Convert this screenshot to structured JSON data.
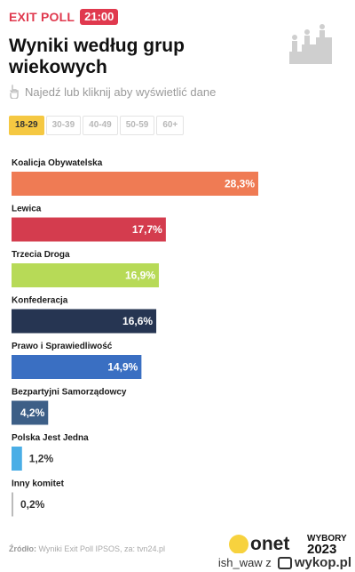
{
  "header": {
    "label": "EXIT POLL",
    "time": "21:00"
  },
  "title": "Wyniki według grup wiekowych",
  "hint": "Najedź lub kliknij aby wyświetlić dane",
  "tabs": [
    {
      "label": "18-29",
      "active": true
    },
    {
      "label": "30-39",
      "active": false
    },
    {
      "label": "40-49",
      "active": false
    },
    {
      "label": "50-59",
      "active": false
    },
    {
      "label": "60+",
      "active": false
    }
  ],
  "chart_data": {
    "type": "bar",
    "orientation": "horizontal",
    "categories": [
      "Koalicja Obywatelska",
      "Lewica",
      "Trzecia Droga",
      "Konfederacja",
      "Prawo i Sprawiedliwość",
      "Bezpartyjni Samorządowcy",
      "Polska Jest Jedna",
      "Inny komitet"
    ],
    "values": [
      28.3,
      17.7,
      16.9,
      16.6,
      14.9,
      4.2,
      1.2,
      0.2
    ],
    "value_labels": [
      "28,3%",
      "17,7%",
      "16,9%",
      "16,6%",
      "14,9%",
      "4,2%",
      "1,2%",
      "0,2%"
    ],
    "colors": [
      "#ef7b54",
      "#d43c4e",
      "#b7da57",
      "#263552",
      "#3a6fc2",
      "#3d5f87",
      "#4aaee6",
      "#bbbbbb"
    ],
    "value_inside": [
      true,
      true,
      true,
      true,
      true,
      true,
      false,
      false
    ],
    "xlim": [
      0,
      28.3
    ],
    "grid": false,
    "legend": "none"
  },
  "source": {
    "label": "Źródło:",
    "text": "Wyniki Exit Poll IPSOS, za: tvn24.pl"
  },
  "brand": {
    "name": "onet",
    "event": "WYBORY",
    "year": "2023"
  },
  "footer": {
    "user": "ish_waw z",
    "site": "wykop.pl"
  }
}
